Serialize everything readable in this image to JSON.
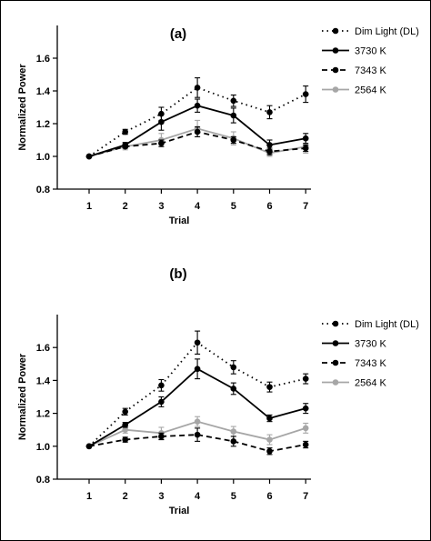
{
  "chart_data": [
    {
      "type": "line",
      "title": "(a)",
      "xlabel": "Trial",
      "ylabel": "Normalized Power",
      "x": [
        1,
        2,
        3,
        4,
        5,
        6,
        7
      ],
      "xticks": [
        "1",
        "2",
        "3",
        "4",
        "5",
        "6",
        "7"
      ],
      "ylim": [
        0.8,
        1.8
      ],
      "yticks": [
        "0.8",
        "1.0",
        "1.2",
        "1.4",
        "1.6"
      ],
      "grid": false,
      "legend": "right",
      "series": [
        {
          "name": "Dim Light (DL)",
          "style": "dotted",
          "color": "#000000",
          "values": [
            1.0,
            1.15,
            1.26,
            1.42,
            1.34,
            1.27,
            1.38
          ],
          "errors": [
            0,
            0.015,
            0.04,
            0.06,
            0.035,
            0.04,
            0.05
          ]
        },
        {
          "name": "3730 K",
          "style": "solid",
          "color": "#000000",
          "values": [
            1.0,
            1.07,
            1.21,
            1.31,
            1.25,
            1.07,
            1.11
          ],
          "errors": [
            0,
            0.015,
            0.05,
            0.04,
            0.045,
            0.03,
            0.03
          ]
        },
        {
          "name": "7343 K",
          "style": "dashed",
          "color": "#000000",
          "values": [
            1.0,
            1.06,
            1.08,
            1.15,
            1.1,
            1.03,
            1.05
          ],
          "errors": [
            0,
            0.01,
            0.02,
            0.03,
            0.02,
            0.02,
            0.02
          ]
        },
        {
          "name": "2564 K",
          "style": "solid",
          "color": "#a6a6a6",
          "values": [
            1.0,
            1.06,
            1.1,
            1.17,
            1.11,
            1.02,
            1.06
          ],
          "errors": [
            0,
            0.02,
            0.04,
            0.05,
            0.04,
            0.02,
            0.04
          ]
        }
      ]
    },
    {
      "type": "line",
      "title": "(b)",
      "xlabel": "Trial",
      "ylabel": "Normalized Power",
      "x": [
        1,
        2,
        3,
        4,
        5,
        6,
        7
      ],
      "xticks": [
        "1",
        "2",
        "3",
        "4",
        "5",
        "6",
        "7"
      ],
      "ylim": [
        0.8,
        1.8
      ],
      "yticks": [
        "0.8",
        "1.0",
        "1.2",
        "1.4",
        "1.6"
      ],
      "grid": false,
      "legend": "right",
      "series": [
        {
          "name": "Dim Light (DL)",
          "style": "dotted",
          "color": "#000000",
          "values": [
            1.0,
            1.21,
            1.37,
            1.63,
            1.48,
            1.36,
            1.41
          ],
          "errors": [
            0,
            0.02,
            0.035,
            0.07,
            0.04,
            0.03,
            0.03
          ]
        },
        {
          "name": "3730 K",
          "style": "solid",
          "color": "#000000",
          "values": [
            1.0,
            1.13,
            1.27,
            1.47,
            1.35,
            1.17,
            1.23
          ],
          "errors": [
            0,
            0.015,
            0.03,
            0.06,
            0.035,
            0.02,
            0.03
          ]
        },
        {
          "name": "7343 K",
          "style": "dashed",
          "color": "#000000",
          "values": [
            1.0,
            1.04,
            1.06,
            1.07,
            1.03,
            0.97,
            1.01
          ],
          "errors": [
            0,
            0.015,
            0.02,
            0.04,
            0.03,
            0.02,
            0.02
          ]
        },
        {
          "name": "2564 K",
          "style": "solid",
          "color": "#a6a6a6",
          "values": [
            1.0,
            1.1,
            1.08,
            1.15,
            1.09,
            1.04,
            1.11
          ],
          "errors": [
            0,
            0.02,
            0.035,
            0.03,
            0.03,
            0.03,
            0.03
          ]
        }
      ]
    }
  ]
}
